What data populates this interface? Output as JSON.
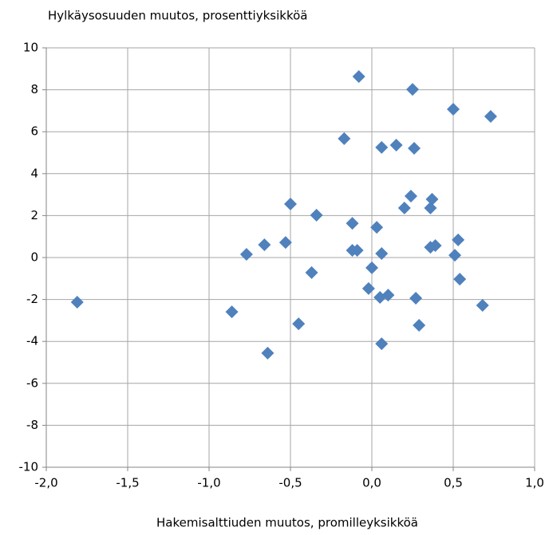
{
  "chart_data": {
    "type": "scatter",
    "y_label": "Hylkäysosuuden muutos, prosenttiyksikköä",
    "x_label": "Hakemisalttiuden muutos, promilleyksikköä",
    "color": "#4f81bd",
    "grid": true,
    "xlim": [
      -2.0,
      1.0
    ],
    "ylim": [
      -10,
      10
    ],
    "xticks": [
      {
        "value": -2.0,
        "label": "-2,0"
      },
      {
        "value": -1.5,
        "label": "-1,5"
      },
      {
        "value": -1.0,
        "label": "-1,0"
      },
      {
        "value": -0.5,
        "label": "-0,5"
      },
      {
        "value": 0.0,
        "label": "0,0"
      },
      {
        "value": 0.5,
        "label": "0,5"
      },
      {
        "value": 1.0,
        "label": "1,0"
      }
    ],
    "yticks": [
      10,
      8,
      6,
      4,
      2,
      0,
      -2,
      -4,
      -6,
      -8,
      -10
    ],
    "x": [
      -1.81,
      -0.86,
      -0.77,
      -0.66,
      -0.64,
      -0.53,
      -0.5,
      -0.45,
      -0.37,
      -0.34,
      -0.17,
      -0.08,
      -0.12,
      -0.12,
      -0.09,
      -0.02,
      0.0,
      0.03,
      0.06,
      0.06,
      0.05,
      0.1,
      0.06,
      0.15,
      0.2,
      0.24,
      0.25,
      0.26,
      0.27,
      0.29,
      0.36,
      0.36,
      0.37,
      0.39,
      0.5,
      0.51,
      0.53,
      0.54,
      0.68,
      0.73
    ],
    "values": [
      -2.13,
      -2.59,
      0.15,
      0.61,
      -4.56,
      0.72,
      2.55,
      -3.16,
      -0.72,
      2.02,
      5.67,
      8.63,
      1.63,
      0.34,
      0.34,
      -1.48,
      -0.49,
      1.44,
      0.19,
      5.25,
      -1.9,
      -1.79,
      -4.11,
      5.36,
      2.36,
      2.93,
      8.02,
      5.21,
      -1.94,
      -3.23,
      0.49,
      2.36,
      2.78,
      0.57,
      7.07,
      0.11,
      0.84,
      -1.03,
      -2.28,
      6.73
    ]
  }
}
